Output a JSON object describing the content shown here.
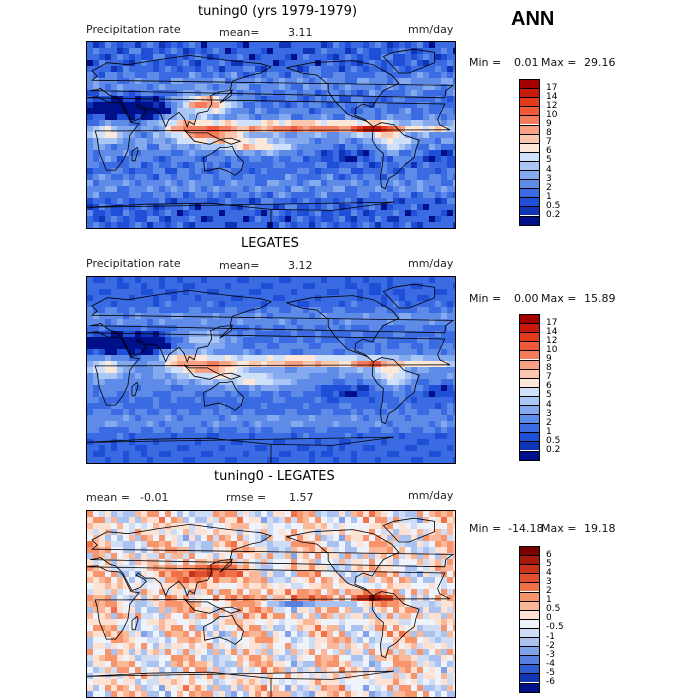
{
  "season": "ANN",
  "chart_data": [
    {
      "type": "heatmap",
      "title": "tuning0 (yrs 1979-1979)",
      "variable": "Precipitation rate",
      "units": "mm/day",
      "mean_label": "mean=",
      "mean_value": "3.11",
      "min_label": "Min =",
      "min_value": "0.01",
      "max_label": "Max =",
      "max_value": "29.16",
      "colorbar_levels": [
        "17",
        "14",
        "12",
        "10",
        "9",
        "8",
        "7",
        "6",
        "5",
        "4",
        "3",
        "2",
        "1",
        "0.5",
        "0.2"
      ],
      "colors": [
        "#a50000",
        "#c81a0a",
        "#e33a1a",
        "#f05a38",
        "#f57c5a",
        "#f8a084",
        "#fbc6ae",
        "#fde7d9",
        "#cfe0fa",
        "#a9c6f5",
        "#85a9ef",
        "#5e8ae8",
        "#3a6be3",
        "#1f4fd6",
        "#1034b8",
        "#000f8a"
      ]
    },
    {
      "type": "heatmap",
      "title": "LEGATES",
      "variable": "Precipitation rate",
      "units": "mm/day",
      "mean_label": "mean=",
      "mean_value": "3.12",
      "min_label": "Min =",
      "min_value": "0.00",
      "max_label": "Max =",
      "max_value": "15.89",
      "colorbar_levels": [
        "17",
        "14",
        "12",
        "10",
        "9",
        "8",
        "7",
        "6",
        "5",
        "4",
        "3",
        "2",
        "1",
        "0.5",
        "0.2"
      ],
      "colors": [
        "#a50000",
        "#c81a0a",
        "#e33a1a",
        "#f05a38",
        "#f57c5a",
        "#f8a084",
        "#fbc6ae",
        "#fde7d9",
        "#cfe0fa",
        "#a9c6f5",
        "#85a9ef",
        "#5e8ae8",
        "#3a6be3",
        "#1f4fd6",
        "#1034b8",
        "#000f8a"
      ]
    },
    {
      "type": "heatmap",
      "title": "tuning0 - LEGATES",
      "units": "mm/day",
      "mean_label": "mean =",
      "mean_value": "-0.01",
      "rmse_label": "rmse =",
      "rmse_value": "1.57",
      "min_label": "Min =",
      "min_value": "-14.18",
      "max_label": "Max =",
      "max_value": "19.18",
      "colorbar_levels": [
        "6",
        "5",
        "4",
        "3",
        "2",
        "1",
        "0.5",
        "0",
        "-0.5",
        "-1",
        "-2",
        "-3",
        "-4",
        "-5",
        "-6"
      ],
      "colors": [
        "#7a0000",
        "#a51a0a",
        "#c8341a",
        "#e0502e",
        "#f07048",
        "#f7946c",
        "#fbb898",
        "#fde1d2",
        "#eef2fb",
        "#cfdcf6",
        "#a9c2f0",
        "#7fa2e8",
        "#5580df",
        "#2f5cd2",
        "#1237b5",
        "#00128a"
      ]
    }
  ]
}
